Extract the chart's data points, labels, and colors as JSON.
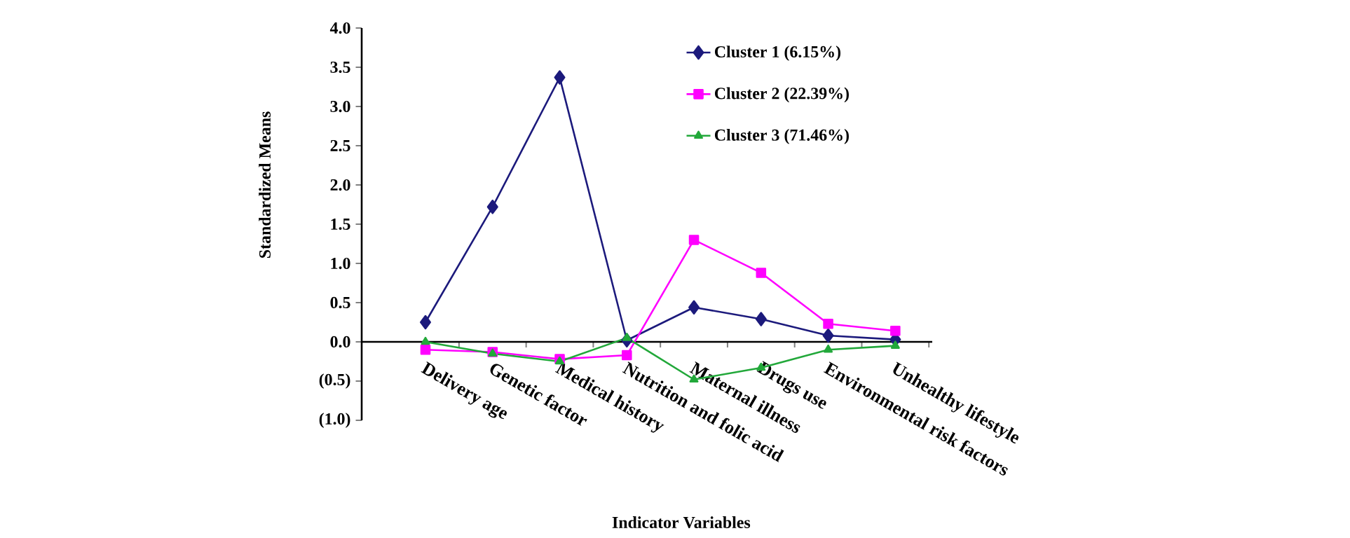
{
  "chart_data": {
    "type": "line",
    "xlabel": "Indicator Variables",
    "ylabel": "Standardized Means",
    "categories": [
      "Delivery age",
      "Genetic factor",
      "Medical history",
      "Nutrition and folic acid",
      "Maternal illness",
      "Drugs use",
      "Environmental risk factors",
      "Unhealthy lifestyle"
    ],
    "series": [
      {
        "name": "Cluster 1 (6.15%)",
        "color": "#1c1a7c",
        "marker": "diamond",
        "values": [
          0.25,
          1.72,
          3.37,
          0.02,
          0.44,
          0.29,
          0.08,
          0.03
        ]
      },
      {
        "name": "Cluster 2 (22.39%)",
        "color": "#ff00ff",
        "marker": "square",
        "values": [
          -0.1,
          -0.13,
          -0.22,
          -0.17,
          1.3,
          0.88,
          0.23,
          0.14
        ]
      },
      {
        "name": "Cluster 3 (71.46%)",
        "color": "#22a83a",
        "marker": "triangle",
        "values": [
          0.0,
          -0.15,
          -0.25,
          0.05,
          -0.48,
          -0.33,
          -0.1,
          -0.05
        ]
      }
    ],
    "ylim": [
      -1.0,
      4.0
    ],
    "yticks": [
      {
        "value": -1.0,
        "label": "(1.0)"
      },
      {
        "value": -0.5,
        "label": "(0.5)"
      },
      {
        "value": 0.0,
        "label": "0.0"
      },
      {
        "value": 0.5,
        "label": "0.5"
      },
      {
        "value": 1.0,
        "label": "1.0"
      },
      {
        "value": 1.5,
        "label": "1.5"
      },
      {
        "value": 2.0,
        "label": "2.0"
      },
      {
        "value": 2.5,
        "label": "2.5"
      },
      {
        "value": 3.0,
        "label": "3.0"
      },
      {
        "value": 3.5,
        "label": "3.5"
      },
      {
        "value": 4.0,
        "label": "4.0"
      }
    ],
    "grid": false,
    "legend": "top right",
    "line_style": "solid"
  }
}
